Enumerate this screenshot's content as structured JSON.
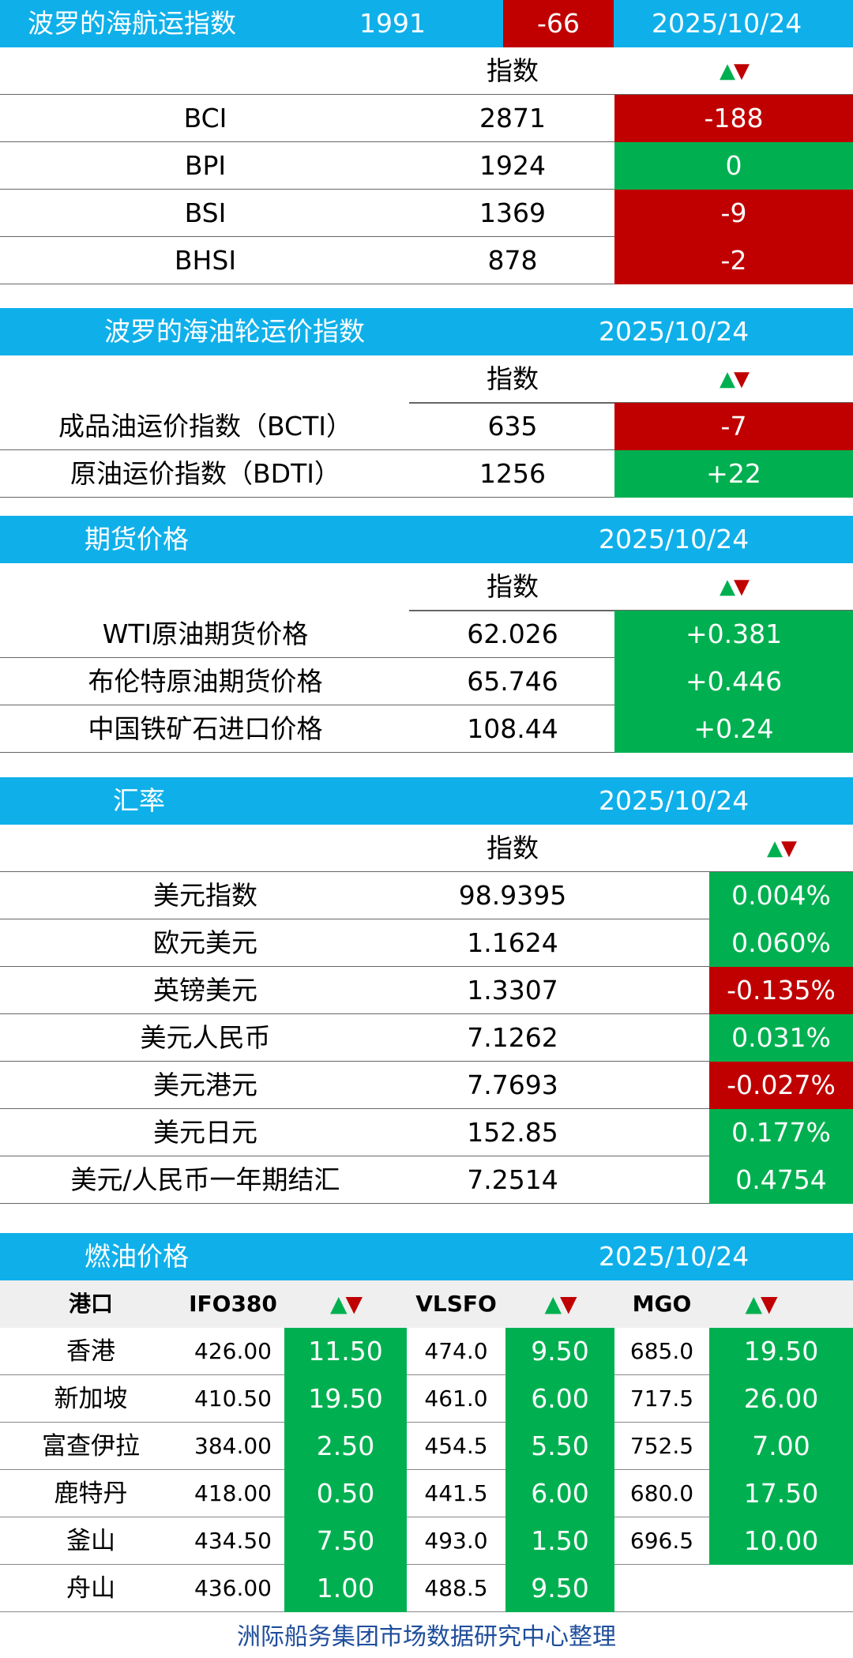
{
  "baltic": {
    "title": "波罗的海航运指数",
    "value": "1991",
    "change": "-66",
    "date": "2025/10/24",
    "header_label": "指数",
    "rows": [
      {
        "name": "BCI",
        "value": "2871",
        "change": "-188",
        "status": "down"
      },
      {
        "name": "BPI",
        "value": "1924",
        "change": "0",
        "status": "up"
      },
      {
        "name": "BSI",
        "value": "1369",
        "change": "-9",
        "status": "down"
      },
      {
        "name": "BHSI",
        "value": "878",
        "change": "-2",
        "status": "down"
      }
    ]
  },
  "tanker": {
    "title": "波罗的海油轮运价指数",
    "date": "2025/10/24",
    "header_label": "指数",
    "rows": [
      {
        "name": "成品油运价指数（BCTI）",
        "value": "635",
        "change": "-7",
        "status": "down"
      },
      {
        "name": "原油运价指数（BDTI）",
        "value": "1256",
        "change": "+22",
        "status": "up"
      }
    ]
  },
  "futures": {
    "title": "期货价格",
    "date": "2025/10/24",
    "header_label": "指数",
    "rows": [
      {
        "name": "WTI原油期货价格",
        "value": "62.026",
        "change": "+0.381",
        "status": "up"
      },
      {
        "name": "布伦特原油期货价格",
        "value": "65.746",
        "change": "+0.446",
        "status": "up"
      },
      {
        "name": "中国铁矿石进口价格",
        "value": "108.44",
        "change": "+0.24",
        "status": "up"
      }
    ]
  },
  "fx": {
    "title": "汇率",
    "date": "2025/10/24",
    "header_label": "指数",
    "rows": [
      {
        "name": "美元指数",
        "value": "98.9395",
        "change": "0.004%",
        "status": "up"
      },
      {
        "name": "欧元美元",
        "value": "1.1624",
        "change": "0.060%",
        "status": "up"
      },
      {
        "name": "英镑美元",
        "value": "1.3307",
        "change": "-0.135%",
        "status": "down"
      },
      {
        "name": "美元人民币",
        "value": "7.1262",
        "change": "0.031%",
        "status": "up"
      },
      {
        "name": "美元港元",
        "value": "7.7693",
        "change": "-0.027%",
        "status": "down"
      },
      {
        "name": "美元日元",
        "value": "152.85",
        "change": "0.177%",
        "status": "up"
      },
      {
        "name": "美元/人民币一年期结汇",
        "value": "7.2514",
        "change": "0.4754",
        "status": "up"
      }
    ]
  },
  "fuel": {
    "title": "燃油价格",
    "date": "2025/10/24",
    "headers": {
      "port": "港口",
      "ifo": "IFO380",
      "vlsfo": "VLSFO",
      "mgo": "MGO"
    },
    "rows": [
      {
        "port": "香港",
        "ifo": "426.00",
        "ifo_chg": "11.50",
        "vlsfo": "474.0",
        "vlsfo_chg": "9.50",
        "mgo": "685.0",
        "mgo_chg": "19.50"
      },
      {
        "port": "新加坡",
        "ifo": "410.50",
        "ifo_chg": "19.50",
        "vlsfo": "461.0",
        "vlsfo_chg": "6.00",
        "mgo": "717.5",
        "mgo_chg": "26.00"
      },
      {
        "port": "富查伊拉",
        "ifo": "384.00",
        "ifo_chg": "2.50",
        "vlsfo": "454.5",
        "vlsfo_chg": "5.50",
        "mgo": "752.5",
        "mgo_chg": "7.00"
      },
      {
        "port": "鹿特丹",
        "ifo": "418.00",
        "ifo_chg": "0.50",
        "vlsfo": "441.5",
        "vlsfo_chg": "6.00",
        "mgo": "680.0",
        "mgo_chg": "17.50"
      },
      {
        "port": "釜山",
        "ifo": "434.50",
        "ifo_chg": "7.50",
        "vlsfo": "493.0",
        "vlsfo_chg": "1.50",
        "mgo": "696.5",
        "mgo_chg": "10.00"
      },
      {
        "port": "舟山",
        "ifo": "436.00",
        "ifo_chg": "1.00",
        "vlsfo": "488.5",
        "vlsfo_chg": "9.50",
        "mgo": "",
        "mgo_chg": ""
      }
    ]
  },
  "footer": "洲际船务集团市场数据研究中心整理",
  "colors": {
    "header_bg": "#0fb0ea",
    "down": "#c00000",
    "up": "#00b050",
    "footer_text": "#1f4e9c"
  }
}
